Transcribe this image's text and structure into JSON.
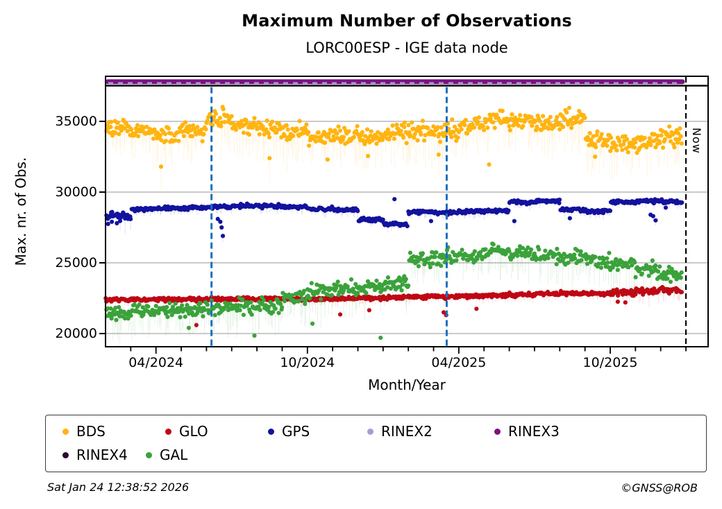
{
  "page": {
    "footer_left": "Sat Jan 24 12:38:52 2026",
    "footer_right": "©GNSS@ROB"
  },
  "chart_data": {
    "type": "scatter",
    "title": "Maximum Number of Observations",
    "subtitle": "LORC00ESP - IGE data node",
    "xlabel": "Month/Year",
    "ylabel": "Max. nr. of Obs.",
    "x_tick_labels": [
      "04/2024",
      "10/2024",
      "04/2025",
      "10/2025"
    ],
    "x_tick_months": [
      2,
      8,
      14,
      20
    ],
    "y_ticks": [
      20000,
      25000,
      30000,
      35000
    ],
    "ylim": [
      19060,
      38190
    ],
    "start_month": "2024-02",
    "months_shown": 24,
    "data_end_month_frac": 22.86,
    "grid": "horizontal-gray",
    "grid_color": "#ABABAB",
    "legend_position": "bottom",
    "event_lines": {
      "color": "#1B6FBF",
      "month_fracs": [
        4.2,
        13.52
      ]
    },
    "now_line": {
      "month_frac": 23.0,
      "label": "Now",
      "color": "#000000"
    },
    "rinex_band": {
      "value": 37800,
      "rinex3_color": "#7A1280",
      "rinex2_color": "#A59CD9",
      "ends_at_month_frac": 22.86
    },
    "divider_value": 37520,
    "series": [
      {
        "name": "BDS",
        "color": "#FFB410",
        "spread": 620,
        "points_per_month": 30,
        "monthly": [
          34600,
          34150,
          33950,
          34350,
          35250,
          34750,
          34450,
          34300,
          33900,
          34050,
          33900,
          34200,
          34250,
          34300,
          34700,
          35050,
          35000,
          34800,
          35150,
          33700,
          33450,
          33600,
          33850,
          34450
        ],
        "outliers": [
          [
            2.2,
            31800
          ],
          [
            6.5,
            32400
          ],
          [
            8.8,
            32300
          ],
          [
            10.4,
            32550
          ],
          [
            13.2,
            32650
          ],
          [
            15.2,
            31950
          ],
          [
            19.4,
            32500
          ]
        ]
      },
      {
        "name": "GPS",
        "color": "#12129E",
        "spread": 130,
        "points_per_month": 30,
        "spread_override": {
          "0": 330
        },
        "monthly": [
          28250,
          28800,
          28850,
          28900,
          28950,
          29050,
          29000,
          28950,
          28800,
          28750,
          28050,
          27750,
          28600,
          28550,
          28650,
          28650,
          29300,
          29350,
          28750,
          28650,
          29300,
          29350,
          29350,
          28600
        ],
        "outliers": [
          [
            0.1,
            27750
          ],
          [
            0.25,
            27900
          ],
          [
            0.45,
            27800
          ],
          [
            4.45,
            28100
          ],
          [
            4.55,
            27900
          ],
          [
            4.6,
            27500
          ],
          [
            4.65,
            26900
          ],
          [
            11.45,
            29500
          ],
          [
            12.9,
            27950
          ],
          [
            16.2,
            27950
          ],
          [
            18.4,
            28150
          ],
          [
            21.6,
            28400
          ],
          [
            21.7,
            28300
          ],
          [
            21.8,
            28000
          ],
          [
            22.2,
            28900
          ]
        ]
      },
      {
        "name": "GLO",
        "color": "#C00714",
        "spread": 130,
        "points_per_month": 30,
        "spread_override": {
          "20": 250,
          "21": 250,
          "22": 220
        },
        "monthly": [
          22400,
          22400,
          22400,
          22420,
          22430,
          22440,
          22450,
          22440,
          22430,
          22460,
          22500,
          22550,
          22600,
          22600,
          22650,
          22700,
          22750,
          22800,
          22850,
          22850,
          22900,
          23000,
          23100,
          23300
        ],
        "outliers": [
          [
            3.6,
            20600
          ],
          [
            9.3,
            21350
          ],
          [
            10.45,
            21650
          ],
          [
            13.4,
            21500
          ],
          [
            13.5,
            21300
          ],
          [
            14.7,
            21750
          ],
          [
            20.3,
            22250
          ],
          [
            20.6,
            22200
          ]
        ]
      },
      {
        "name": "GAL",
        "color": "#3BA23B",
        "spread": 520,
        "points_per_month": 30,
        "monthly": [
          21450,
          21550,
          21650,
          21750,
          21800,
          21850,
          22000,
          22550,
          23050,
          23250,
          23300,
          23500,
          25200,
          25400,
          25500,
          25800,
          25700,
          25600,
          25400,
          25150,
          24900,
          24500,
          24100,
          23800
        ],
        "outliers": [
          [
            3.3,
            20400
          ],
          [
            5.9,
            19850
          ],
          [
            8.2,
            20700
          ],
          [
            10.9,
            19700
          ]
        ]
      }
    ],
    "legend": [
      {
        "label": "BDS",
        "color": "#FFB410"
      },
      {
        "label": "GLO",
        "color": "#C00714"
      },
      {
        "label": "GPS",
        "color": "#12129E"
      },
      {
        "label": "RINEX2",
        "color": "#A59CD9"
      },
      {
        "label": "RINEX3",
        "color": "#7A1280"
      },
      {
        "label": "RINEX4",
        "color": "#2C0B30"
      },
      {
        "label": "GAL",
        "color": "#3BA23B"
      }
    ]
  }
}
